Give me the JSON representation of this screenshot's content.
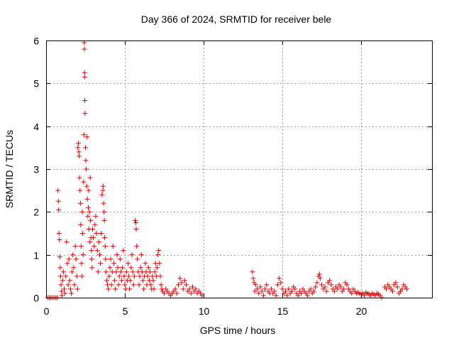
{
  "chart_data": {
    "type": "scatter",
    "title": "Day 366 of 2024, SRMTID for receiver bele",
    "xlabel": "GPS time / hours",
    "ylabel": "SRMTID / TECUs",
    "xlim": [
      0,
      24.5
    ],
    "ylim": [
      0,
      6
    ],
    "xticks": [
      0,
      5,
      10,
      15,
      20
    ],
    "yticks": [
      0,
      1,
      2,
      3,
      4,
      5,
      6
    ],
    "xtick_labels": [
      "0",
      "5",
      "10",
      "15",
      "20"
    ],
    "ytick_labels": [
      "0",
      "1",
      "2",
      "3",
      "4",
      "5",
      "6"
    ],
    "grid": true,
    "marker": "plus",
    "color": "#e00000",
    "series": [
      {
        "name": "SRMTID",
        "points": [
          [
            0.1,
            0.0
          ],
          [
            0.2,
            0.0
          ],
          [
            0.3,
            0.0
          ],
          [
            0.4,
            0.0
          ],
          [
            0.5,
            0.0
          ],
          [
            0.6,
            0.0
          ],
          [
            0.7,
            0.0
          ],
          [
            0.75,
            2.5
          ],
          [
            0.78,
            2.25
          ],
          [
            0.8,
            2.05
          ],
          [
            0.82,
            1.5
          ],
          [
            0.85,
            1.35
          ],
          [
            0.87,
            0.95
          ],
          [
            0.9,
            0.7
          ],
          [
            0.92,
            0.5
          ],
          [
            0.95,
            0.3
          ],
          [
            0.98,
            0.15
          ],
          [
            1.0,
            0.05
          ],
          [
            1.05,
            0.4
          ],
          [
            1.1,
            0.6
          ],
          [
            1.15,
            0.2
          ],
          [
            1.2,
            0.1
          ],
          [
            1.25,
            0.5
          ],
          [
            1.3,
            1.3
          ],
          [
            1.35,
            0.8
          ],
          [
            1.4,
            0.3
          ],
          [
            1.45,
            0.9
          ],
          [
            1.5,
            0.4
          ],
          [
            1.55,
            0.2
          ],
          [
            1.6,
            0.1
          ],
          [
            1.65,
            0.6
          ],
          [
            1.7,
            1.0
          ],
          [
            1.75,
            0.7
          ],
          [
            1.8,
            0.3
          ],
          [
            1.85,
            1.2
          ],
          [
            1.9,
            0.9
          ],
          [
            1.95,
            0.5
          ],
          [
            2.0,
            0.2
          ],
          [
            2.02,
            3.5
          ],
          [
            2.05,
            3.6
          ],
          [
            2.08,
            3.4
          ],
          [
            2.1,
            3.3
          ],
          [
            2.12,
            2.8
          ],
          [
            2.15,
            2.5
          ],
          [
            2.18,
            2.2
          ],
          [
            2.2,
            1.7
          ],
          [
            2.22,
            1.2
          ],
          [
            2.25,
            0.8
          ],
          [
            2.28,
            0.5
          ],
          [
            2.3,
            2.0
          ],
          [
            2.32,
            1.5
          ],
          [
            2.35,
            1.0
          ],
          [
            2.38,
            2.7
          ],
          [
            2.4,
            3.8
          ],
          [
            2.42,
            5.95
          ],
          [
            2.43,
            5.8
          ],
          [
            2.44,
            5.25
          ],
          [
            2.45,
            5.15
          ],
          [
            2.46,
            4.6
          ],
          [
            2.47,
            4.3
          ],
          [
            2.5,
            3.5
          ],
          [
            2.52,
            3.2
          ],
          [
            2.55,
            3.0
          ],
          [
            2.58,
            2.6
          ],
          [
            2.6,
            3.75
          ],
          [
            2.62,
            2.3
          ],
          [
            2.65,
            1.9
          ],
          [
            2.68,
            2.1
          ],
          [
            2.7,
            2.5
          ],
          [
            2.72,
            1.6
          ],
          [
            2.75,
            2.0
          ],
          [
            2.78,
            1.3
          ],
          [
            2.8,
            2.8
          ],
          [
            2.82,
            1.8
          ],
          [
            2.85,
            1.4
          ],
          [
            2.88,
            1.1
          ],
          [
            2.9,
            0.9
          ],
          [
            2.92,
            0.7
          ],
          [
            2.95,
            1.6
          ],
          [
            3.0,
            1.4
          ],
          [
            3.05,
            1.2
          ],
          [
            3.1,
            1.7
          ],
          [
            3.15,
            1.9
          ],
          [
            3.2,
            1.5
          ],
          [
            3.25,
            1.1
          ],
          [
            3.3,
            0.6
          ],
          [
            3.35,
            1.3
          ],
          [
            3.4,
            1.0
          ],
          [
            3.45,
            0.8
          ],
          [
            3.5,
            1.5
          ],
          [
            3.55,
            2.4
          ],
          [
            3.6,
            2.5
          ],
          [
            3.62,
            2.6
          ],
          [
            3.65,
            2.2
          ],
          [
            3.68,
            2.0
          ],
          [
            3.7,
            1.8
          ],
          [
            3.72,
            1.4
          ],
          [
            3.75,
            1.2
          ],
          [
            3.78,
            0.9
          ],
          [
            3.8,
            0.6
          ],
          [
            3.85,
            0.4
          ],
          [
            3.9,
            0.3
          ],
          [
            3.95,
            0.2
          ],
          [
            4.0,
            0.5
          ],
          [
            4.05,
            0.7
          ],
          [
            4.1,
            0.9
          ],
          [
            4.15,
            0.3
          ],
          [
            4.2,
            0.6
          ],
          [
            4.25,
            1.2
          ],
          [
            4.3,
            0.8
          ],
          [
            4.35,
            0.4
          ],
          [
            4.4,
            0.2
          ],
          [
            4.45,
            0.6
          ],
          [
            4.5,
            1.0
          ],
          [
            4.55,
            0.7
          ],
          [
            4.6,
            0.3
          ],
          [
            4.65,
            0.5
          ],
          [
            4.7,
            0.9
          ],
          [
            4.75,
            0.6
          ],
          [
            4.8,
            0.4
          ],
          [
            4.85,
            0.7
          ],
          [
            4.9,
            1.1
          ],
          [
            4.95,
            0.5
          ],
          [
            5.0,
            0.3
          ],
          [
            5.05,
            0.2
          ],
          [
            5.1,
            0.6
          ],
          [
            5.15,
            0.4
          ],
          [
            5.2,
            0.8
          ],
          [
            5.25,
            0.5
          ],
          [
            5.3,
            0.2
          ],
          [
            5.35,
            0.4
          ],
          [
            5.4,
            0.7
          ],
          [
            5.45,
            1.0
          ],
          [
            5.5,
            0.6
          ],
          [
            5.55,
            0.3
          ],
          [
            5.6,
            0.5
          ],
          [
            5.65,
            1.8
          ],
          [
            5.7,
            1.75
          ],
          [
            5.72,
            1.6
          ],
          [
            5.75,
            1.2
          ],
          [
            5.8,
            0.9
          ],
          [
            5.85,
            0.6
          ],
          [
            5.9,
            0.3
          ],
          [
            5.95,
            0.5
          ],
          [
            6.0,
            0.7
          ],
          [
            6.05,
            1.0
          ],
          [
            6.1,
            0.6
          ],
          [
            6.15,
            0.4
          ],
          [
            6.2,
            0.2
          ],
          [
            6.25,
            0.5
          ],
          [
            6.3,
            0.8
          ],
          [
            6.35,
            0.6
          ],
          [
            6.4,
            0.3
          ],
          [
            6.45,
            0.5
          ],
          [
            6.5,
            0.7
          ],
          [
            6.55,
            0.4
          ],
          [
            6.6,
            0.6
          ],
          [
            6.65,
            0.3
          ],
          [
            6.7,
            0.2
          ],
          [
            6.75,
            0.5
          ],
          [
            6.8,
            0.4
          ],
          [
            6.85,
            0.2
          ],
          [
            6.9,
            0.6
          ],
          [
            6.95,
            0.8
          ],
          [
            7.0,
            0.5
          ],
          [
            7.05,
            0.7
          ],
          [
            7.1,
            1.0
          ],
          [
            7.15,
            1.1
          ],
          [
            7.2,
            0.8
          ],
          [
            7.25,
            0.5
          ],
          [
            7.3,
            0.3
          ],
          [
            7.35,
            0.2
          ],
          [
            7.4,
            0.15
          ],
          [
            7.5,
            0.1
          ],
          [
            7.6,
            0.2
          ],
          [
            7.7,
            0.15
          ],
          [
            7.8,
            0.1
          ],
          [
            7.9,
            0.05
          ],
          [
            8.0,
            0.1
          ],
          [
            8.1,
            0.15
          ],
          [
            8.2,
            0.2
          ],
          [
            8.3,
            0.1
          ],
          [
            8.4,
            0.3
          ],
          [
            8.5,
            0.45
          ],
          [
            8.6,
            0.35
          ],
          [
            8.7,
            0.2
          ],
          [
            8.8,
            0.4
          ],
          [
            8.9,
            0.3
          ],
          [
            9.0,
            0.15
          ],
          [
            9.1,
            0.2
          ],
          [
            9.2,
            0.1
          ],
          [
            9.3,
            0.25
          ],
          [
            9.4,
            0.15
          ],
          [
            9.5,
            0.2
          ],
          [
            9.6,
            0.1
          ],
          [
            9.7,
            0.15
          ],
          [
            9.8,
            0.1
          ],
          [
            9.9,
            0.05
          ],
          [
            13.1,
            0.6
          ],
          [
            13.15,
            0.45
          ],
          [
            13.2,
            0.35
          ],
          [
            13.25,
            0.15
          ],
          [
            13.3,
            0.3
          ],
          [
            13.4,
            0.2
          ],
          [
            13.5,
            0.1
          ],
          [
            13.6,
            0.25
          ],
          [
            13.7,
            0.15
          ],
          [
            13.8,
            0.05
          ],
          [
            13.9,
            0.2
          ],
          [
            14.0,
            0.3
          ],
          [
            14.1,
            0.15
          ],
          [
            14.2,
            0.1
          ],
          [
            14.3,
            0.2
          ],
          [
            14.4,
            0.1
          ],
          [
            14.5,
            0.15
          ],
          [
            14.6,
            0.05
          ],
          [
            14.7,
            0.3
          ],
          [
            14.8,
            0.45
          ],
          [
            14.9,
            0.35
          ],
          [
            15.0,
            0.2
          ],
          [
            15.1,
            0.1
          ],
          [
            15.2,
            0.15
          ],
          [
            15.3,
            0.05
          ],
          [
            15.4,
            0.2
          ],
          [
            15.5,
            0.1
          ],
          [
            15.6,
            0.15
          ],
          [
            15.7,
            0.25
          ],
          [
            15.8,
            0.2
          ],
          [
            15.9,
            0.1
          ],
          [
            16.0,
            0.05
          ],
          [
            16.1,
            0.15
          ],
          [
            16.2,
            0.1
          ],
          [
            16.3,
            0.2
          ],
          [
            16.4,
            0.15
          ],
          [
            16.5,
            0.1
          ],
          [
            16.6,
            0.05
          ],
          [
            16.7,
            0.15
          ],
          [
            16.8,
            0.2
          ],
          [
            16.9,
            0.1
          ],
          [
            17.0,
            0.15
          ],
          [
            17.1,
            0.25
          ],
          [
            17.2,
            0.35
          ],
          [
            17.3,
            0.5
          ],
          [
            17.35,
            0.55
          ],
          [
            17.4,
            0.45
          ],
          [
            17.5,
            0.3
          ],
          [
            17.6,
            0.2
          ],
          [
            17.7,
            0.25
          ],
          [
            17.8,
            0.15
          ],
          [
            17.9,
            0.35
          ],
          [
            18.0,
            0.4
          ],
          [
            18.1,
            0.3
          ],
          [
            18.2,
            0.2
          ],
          [
            18.3,
            0.15
          ],
          [
            18.4,
            0.25
          ],
          [
            18.5,
            0.2
          ],
          [
            18.6,
            0.3
          ],
          [
            18.7,
            0.25
          ],
          [
            18.8,
            0.15
          ],
          [
            18.9,
            0.2
          ],
          [
            19.0,
            0.35
          ],
          [
            19.1,
            0.3
          ],
          [
            19.2,
            0.2
          ],
          [
            19.3,
            0.15
          ],
          [
            19.4,
            0.1
          ],
          [
            19.5,
            0.2
          ],
          [
            19.6,
            0.15
          ],
          [
            19.7,
            0.1
          ],
          [
            19.8,
            0.12
          ],
          [
            19.9,
            0.1
          ],
          [
            20.0,
            0.08
          ],
          [
            20.1,
            0.1
          ],
          [
            20.2,
            0.05
          ],
          [
            20.3,
            0.12
          ],
          [
            20.4,
            0.1
          ],
          [
            20.5,
            0.08
          ],
          [
            20.6,
            0.05
          ],
          [
            20.7,
            0.1
          ],
          [
            20.8,
            0.08
          ],
          [
            20.9,
            0.05
          ],
          [
            21.0,
            0.1
          ],
          [
            21.1,
            0.08
          ],
          [
            21.2,
            0.05
          ],
          [
            21.3,
            0.0
          ],
          [
            21.5,
            0.25
          ],
          [
            21.6,
            0.2
          ],
          [
            21.7,
            0.3
          ],
          [
            21.8,
            0.25
          ],
          [
            21.9,
            0.2
          ],
          [
            22.0,
            0.15
          ],
          [
            22.1,
            0.3
          ],
          [
            22.2,
            0.35
          ],
          [
            22.3,
            0.25
          ],
          [
            22.4,
            0.1
          ],
          [
            22.5,
            0.15
          ],
          [
            22.6,
            0.2
          ],
          [
            22.7,
            0.3
          ],
          [
            22.8,
            0.25
          ],
          [
            22.9,
            0.2
          ]
        ]
      }
    ]
  }
}
